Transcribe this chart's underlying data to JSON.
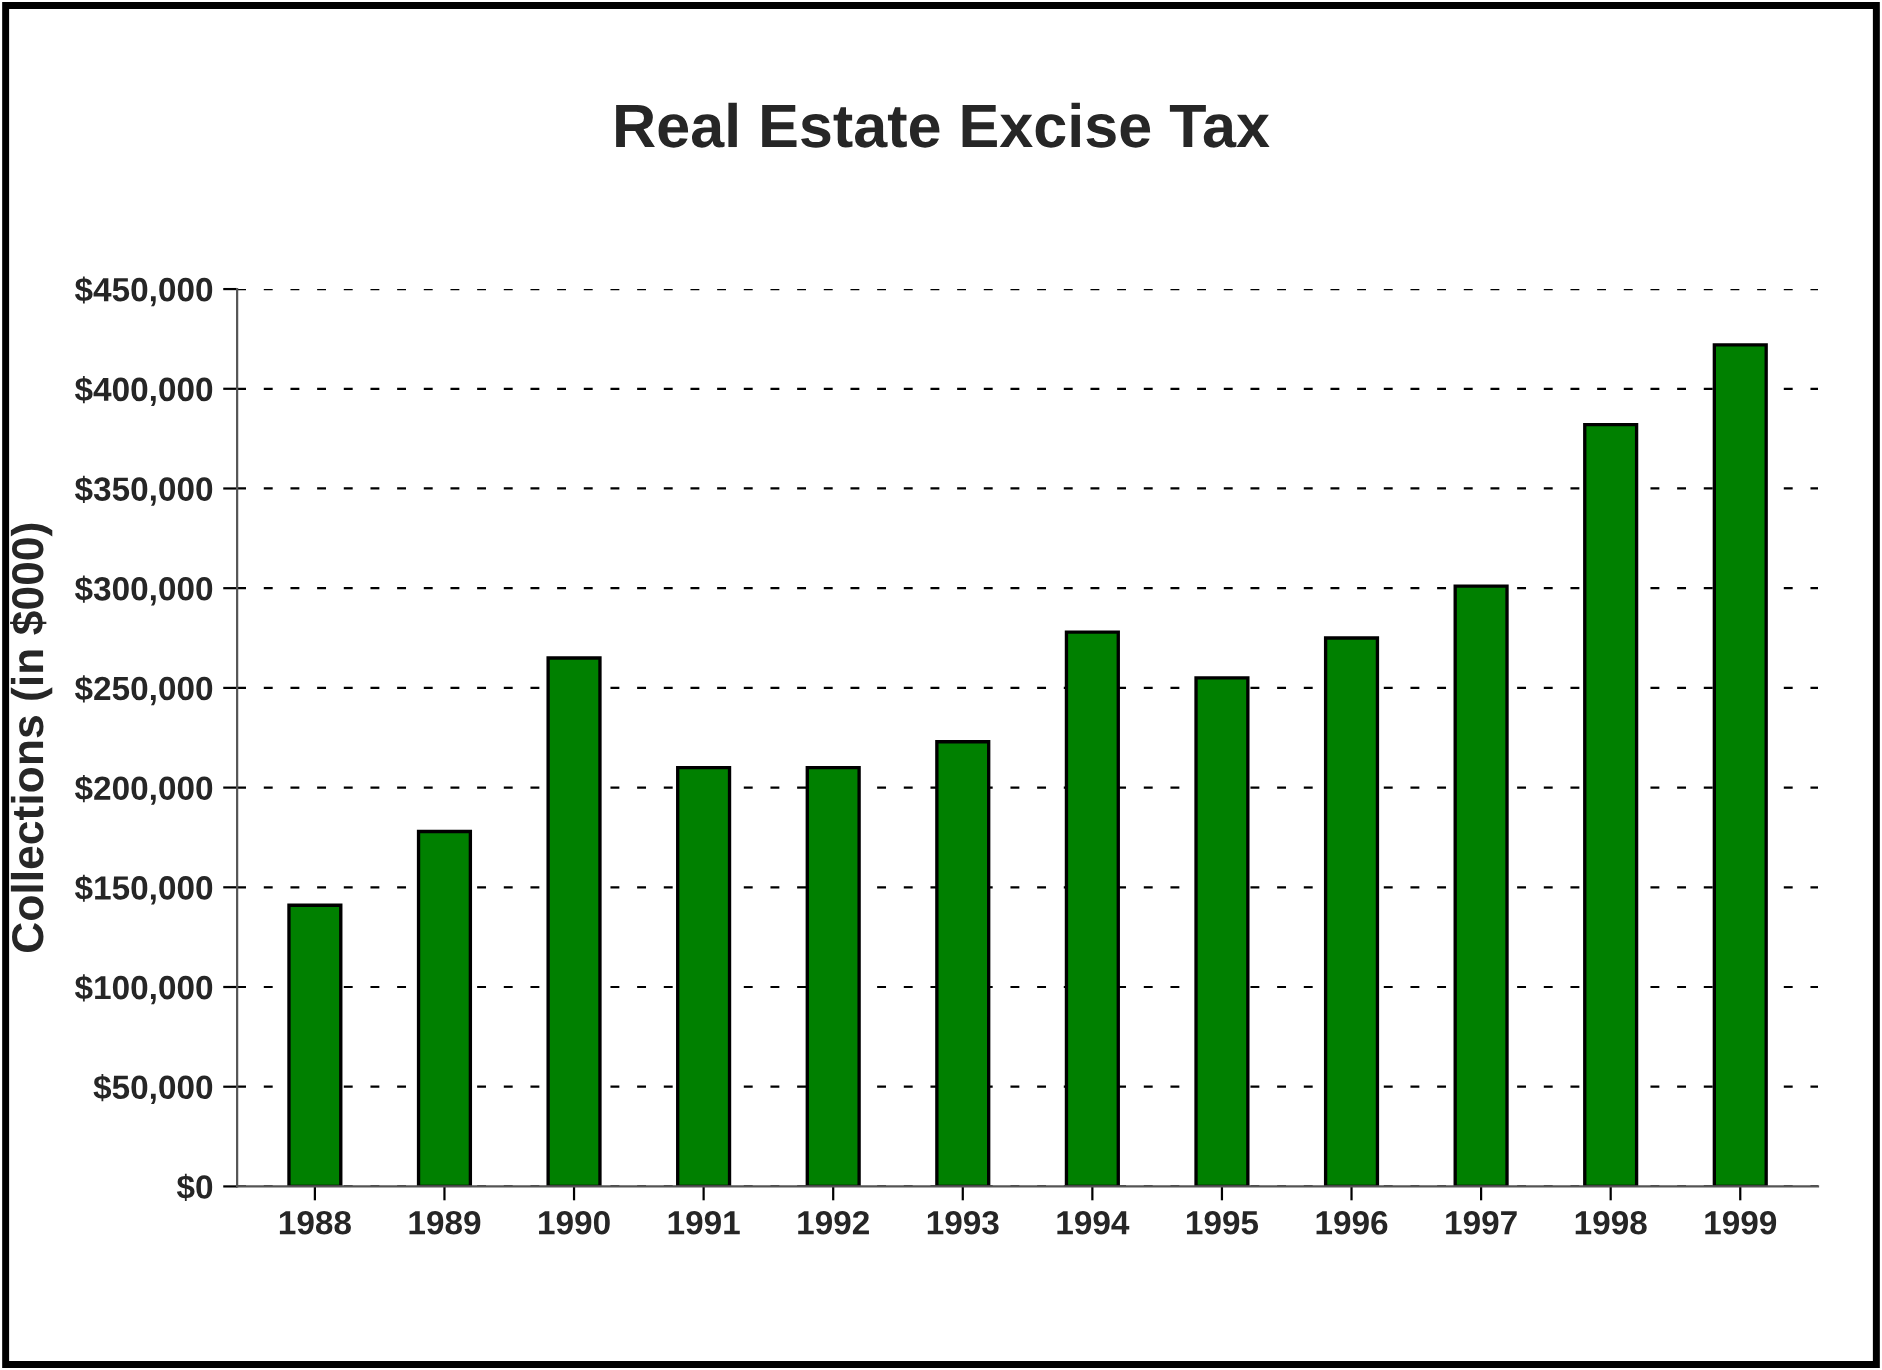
{
  "chart_data": {
    "type": "bar",
    "title": "Real Estate Excise Tax",
    "ylabel": "Collections (in $000)",
    "categories": [
      "1988",
      "1989",
      "1990",
      "1991",
      "1992",
      "1993",
      "1994",
      "1995",
      "1996",
      "1997",
      "1998",
      "1999"
    ],
    "values": [
      141000,
      178000,
      265000,
      210000,
      210000,
      223000,
      278000,
      255000,
      275000,
      301000,
      382000,
      422000
    ],
    "color": "#008000",
    "ylim": [
      0,
      450000
    ],
    "yticks": [
      {
        "value": 0,
        "label": "$0"
      },
      {
        "value": 50000,
        "label": "$50,000"
      },
      {
        "value": 100000,
        "label": "$100,000"
      },
      {
        "value": 150000,
        "label": "$150,000"
      },
      {
        "value": 200000,
        "label": "$200,000"
      },
      {
        "value": 250000,
        "label": "$250,000"
      },
      {
        "value": 300000,
        "label": "$300,000"
      },
      {
        "value": 350000,
        "label": "$350,000"
      },
      {
        "value": 400000,
        "label": "$400,000"
      },
      {
        "value": 450000,
        "label": "$450,000"
      }
    ],
    "grid": "y",
    "line_style": "dashed"
  }
}
